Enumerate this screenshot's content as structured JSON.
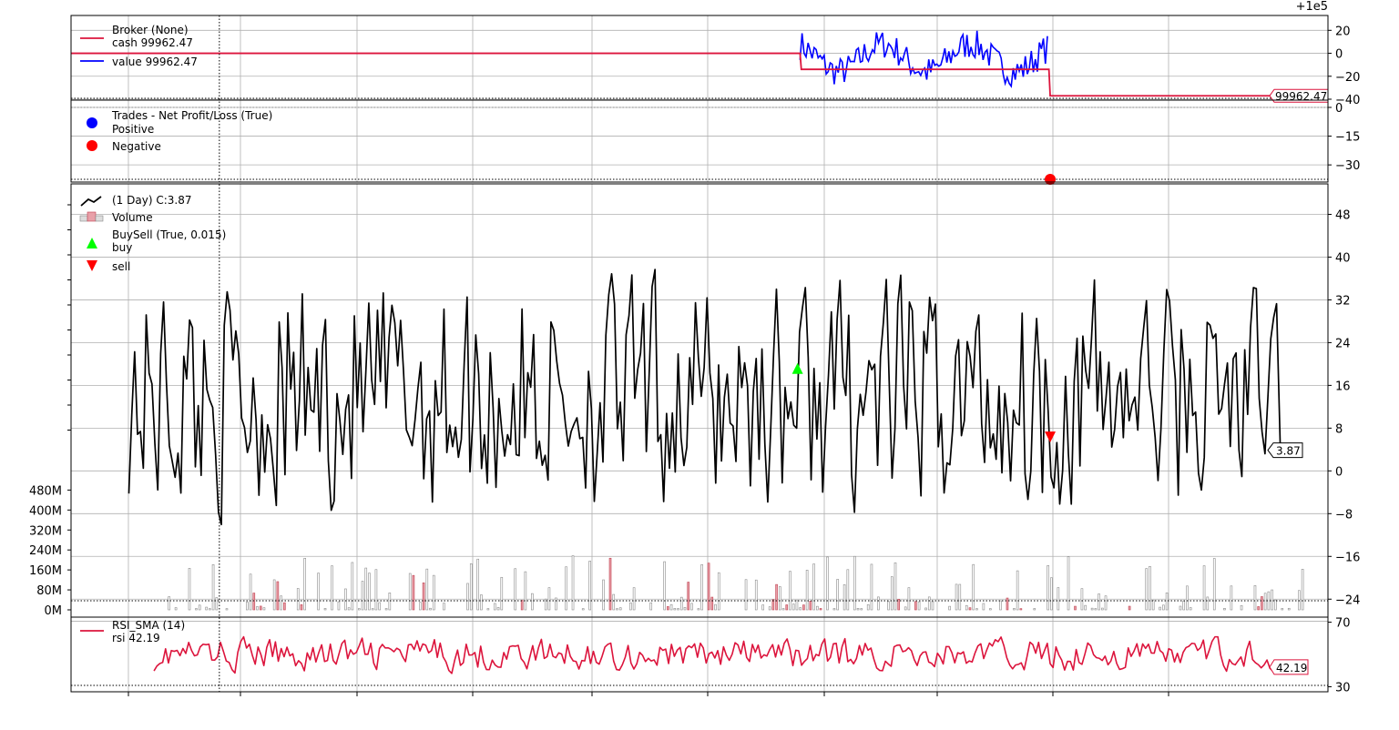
{
  "chart_data": {
    "type": "line",
    "offset_label": "+1e5",
    "panels": [
      {
        "name": "broker",
        "legend": {
          "title": "Broker (None)",
          "entries": [
            "cash 99962.47",
            "value 99962.47"
          ]
        },
        "ylim": [
          -40,
          25
        ],
        "yticks": [
          "20",
          "0",
          "−20",
          "−40"
        ],
        "ytick_values": [
          20,
          0,
          -20,
          -40
        ],
        "last_value_label": "99962.47",
        "colors": {
          "cash": "#dc143c",
          "value": "#0000ff"
        },
        "cash_steps": [
          [
            0,
            0
          ],
          [
            580,
            0
          ],
          [
            581,
            -14
          ],
          [
            778,
            -14
          ],
          [
            779,
            -37
          ],
          [
            980,
            -37
          ]
        ],
        "value_segments": [
          {
            "start": 580,
            "end": 778,
            "base": -14,
            "zero": 0
          }
        ]
      },
      {
        "name": "trades",
        "legend": {
          "title": "Trades - Net Profit/Loss (True)",
          "entries": [
            "Positive",
            "Negative"
          ]
        },
        "ylim": [
          -38,
          0
        ],
        "yticks": [
          "0",
          "−15",
          "−30"
        ],
        "ytick_values": [
          0,
          -15,
          -30
        ],
        "colors": {
          "positive": "#0000ff",
          "negative": "#ff0000"
        },
        "negative_points": [
          {
            "x": 779,
            "y": -37.5
          }
        ]
      },
      {
        "name": "price",
        "legend": {
          "entries": [
            " (1 Day) C:3.87",
            "Volume",
            "BuySell (True, 0.015)",
            "buy",
            "sell"
          ]
        },
        "ylim": [
          -26,
          52
        ],
        "yticks": [
          "48",
          "40",
          "32",
          "24",
          "16",
          "8",
          "0",
          "−8",
          "−16",
          "−24"
        ],
        "ytick_values": [
          48,
          40,
          32,
          24,
          16,
          8,
          0,
          -8,
          -16,
          -24
        ],
        "volume_ylim": [
          0,
          1200
        ],
        "volume_yticks": [
          "480M",
          "400M",
          "320M",
          "240M",
          "160M",
          "80M",
          "0M"
        ],
        "volume_ytick_values": [
          480,
          400,
          320,
          240,
          160,
          80,
          0
        ],
        "last_value_label": "3.87",
        "buy_points": [
          {
            "x": 578,
            "y": 19
          }
        ],
        "sell_points": [
          {
            "x": 779,
            "y": 6.5
          }
        ],
        "colors": {
          "line": "#000000",
          "buy": "#00ff00",
          "sell": "#ff0000",
          "vol_up": "#ffffff",
          "vol_down": "#e8a0a8"
        }
      },
      {
        "name": "rsi",
        "legend": {
          "entries": [
            "RSI_SMA (14)",
            "rsi 42.19"
          ]
        },
        "ylim": [
          28,
          72
        ],
        "yticks": [
          "70",
          "30"
        ],
        "ytick_values": [
          70,
          30
        ],
        "last_value_label": "42.19",
        "colors": {
          "line": "#dc143c"
        }
      }
    ],
    "x_range": [
      0,
      1000
    ],
    "cursor_x": 118,
    "grid": true
  }
}
